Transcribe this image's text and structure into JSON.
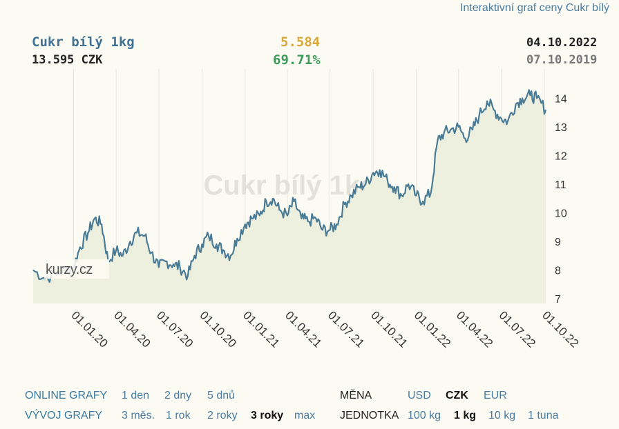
{
  "link_title": "Interaktivní graf ceny Cukr bílý",
  "header": {
    "name": "Cukr bílý 1kg",
    "price": "13.595 CZK",
    "change_abs": "5.584",
    "change_pct": "69.71%",
    "date_end": "04.10.2022",
    "date_start": "07.10.2019"
  },
  "watermark": "Cukr bílý 1kg",
  "logo": "kurzy.cz",
  "colors": {
    "line": "#4a7b96",
    "fill": "#eef0df",
    "change_abs": "#d9a83a",
    "change_pct": "#3d9a5a",
    "link": "#4a7ba0"
  },
  "chart_data": {
    "type": "area",
    "title": "Cukr bílý 1kg",
    "xlabel": "",
    "ylabel": "",
    "ylim": [
      7,
      14.5
    ],
    "y_ticks": [
      "7",
      "8",
      "9",
      "10",
      "11",
      "12",
      "13",
      "14"
    ],
    "x_ticks": [
      "01.01.20",
      "01.04.20",
      "01.07.20",
      "01.10.20",
      "01.01.21",
      "01.04.21",
      "01.07.21",
      "01.10.21",
      "01.01.22",
      "01.04.22",
      "01.07.22",
      "01.10.22"
    ],
    "series": [
      {
        "x": [
          "07.10.2019",
          "01.11.2019",
          "01.12.2019",
          "01.01.2020",
          "15.01.2020",
          "01.02.2020",
          "15.02.2020",
          "01.03.2020",
          "15.03.2020",
          "01.04.2020",
          "15.04.2020",
          "01.05.2020",
          "15.05.2020",
          "01.06.2020",
          "15.06.2020",
          "01.07.2020",
          "15.07.2020",
          "01.08.2020",
          "15.08.2020",
          "01.09.2020",
          "15.09.2020",
          "01.10.2020",
          "15.10.2020",
          "01.11.2020",
          "15.11.2020",
          "01.12.2020",
          "15.12.2020",
          "01.01.2021",
          "15.01.2021",
          "01.02.2021",
          "15.02.2021",
          "01.03.2021",
          "15.03.2021",
          "01.04.2021",
          "15.04.2021",
          "01.05.2021",
          "15.05.2021",
          "01.06.2021",
          "15.06.2021",
          "01.07.2021",
          "15.07.2021",
          "01.08.2021",
          "15.08.2021",
          "01.09.2021",
          "15.09.2021",
          "01.10.2021",
          "15.10.2021",
          "01.11.2021",
          "15.11.2021",
          "01.12.2021",
          "15.12.2021",
          "01.01.2022",
          "15.01.2022",
          "01.02.2022",
          "15.02.2022",
          "01.03.2022",
          "15.03.2022",
          "01.04.2022",
          "15.04.2022",
          "01.05.2022",
          "15.05.2022",
          "01.06.2022",
          "15.06.2022",
          "01.07.2022",
          "15.07.2022",
          "01.08.2022",
          "15.08.2022",
          "01.09.2022",
          "15.09.2022",
          "04.10.2022"
        ],
        "values": [
          8.0,
          7.7,
          7.9,
          8.1,
          8.8,
          9.3,
          9.8,
          9.6,
          8.3,
          8.7,
          8.5,
          9.0,
          9.3,
          9.2,
          8.6,
          8.1,
          8.3,
          8.2,
          8.1,
          7.8,
          8.5,
          8.9,
          9.2,
          8.9,
          8.7,
          8.5,
          9.1,
          9.6,
          9.8,
          9.9,
          10.4,
          10.5,
          10.1,
          9.9,
          10.4,
          9.8,
          9.7,
          9.8,
          9.4,
          9.4,
          9.6,
          10.3,
          10.6,
          10.9,
          11.0,
          11.4,
          11.5,
          11.1,
          10.9,
          10.6,
          11.0,
          10.6,
          10.4,
          10.7,
          12.5,
          12.8,
          12.9,
          13.0,
          12.6,
          12.9,
          13.4,
          13.9,
          13.6,
          13.3,
          13.2,
          13.8,
          14.0,
          14.1,
          14.0,
          13.6
        ]
      }
    ]
  }
}
